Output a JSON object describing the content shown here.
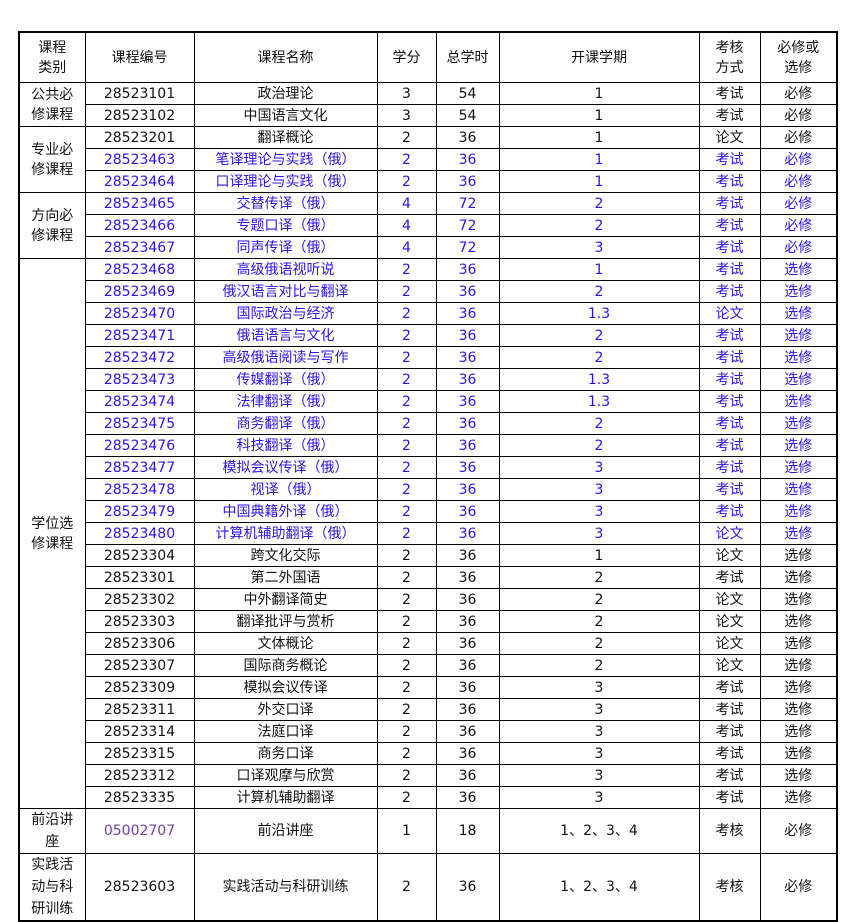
{
  "headers": [
    "课程\n类别",
    "课程编号",
    "课程名称",
    "学分",
    "总学时",
    "开课学期",
    "考核\n方式",
    "必修或\n选修"
  ],
  "colors": {
    "highlight": "#2a14ee",
    "code_purple": "#6b3fa0",
    "text": "#111111"
  },
  "groups": [
    {
      "category": "公共必修课程",
      "rows": [
        {
          "code": "28523101",
          "name": "政治理论",
          "credit": "3",
          "hours": "54",
          "term": "1",
          "exam": "考试",
          "type": "必修",
          "highlight": false
        },
        {
          "code": "28523102",
          "name": "中国语言文化",
          "credit": "3",
          "hours": "54",
          "term": "1",
          "exam": "考试",
          "type": "必修",
          "highlight": false
        }
      ]
    },
    {
      "category": "专业必修课程",
      "rows": [
        {
          "code": "28523201",
          "name": "翻译概论",
          "credit": "2",
          "hours": "36",
          "term": "1",
          "exam": "论文",
          "type": "必修",
          "highlight": false
        },
        {
          "code": "28523463",
          "name": "笔译理论与实践（俄）",
          "credit": "2",
          "hours": "36",
          "term": "1",
          "exam": "考试",
          "type": "必修",
          "highlight": true
        },
        {
          "code": "28523464",
          "name": "口译理论与实践（俄）",
          "credit": "2",
          "hours": "36",
          "term": "1",
          "exam": "考试",
          "type": "必修",
          "highlight": true
        }
      ]
    },
    {
      "category": "方向必修课程",
      "rows": [
        {
          "code": "28523465",
          "name": "交替传译（俄）",
          "credit": "4",
          "hours": "72",
          "term": "2",
          "exam": "考试",
          "type": "必修",
          "highlight": true
        },
        {
          "code": "28523466",
          "name": "专题口译（俄）",
          "credit": "4",
          "hours": "72",
          "term": "2",
          "exam": "考试",
          "type": "必修",
          "highlight": true
        },
        {
          "code": "28523467",
          "name": "同声传译（俄）",
          "credit": "4",
          "hours": "72",
          "term": "3",
          "exam": "考试",
          "type": "必修",
          "highlight": true
        }
      ]
    },
    {
      "category": "学位选修课程",
      "rows": [
        {
          "code": "28523468",
          "name": "高级俄语视听说",
          "credit": "2",
          "hours": "36",
          "term": "1",
          "exam": "考试",
          "type": "选修",
          "highlight": true
        },
        {
          "code": "28523469",
          "name": "俄汉语言对比与翻译",
          "credit": "2",
          "hours": "36",
          "term": "2",
          "exam": "考试",
          "type": "选修",
          "highlight": true
        },
        {
          "code": "28523470",
          "name": "国际政治与经济",
          "credit": "2",
          "hours": "36",
          "term": "1.3",
          "exam": "论文",
          "type": "选修",
          "highlight": true
        },
        {
          "code": "28523471",
          "name": "俄语语言与文化",
          "credit": "2",
          "hours": "36",
          "term": "2",
          "exam": "考试",
          "type": "选修",
          "highlight": true
        },
        {
          "code": "28523472",
          "name": "高级俄语阅读与写作",
          "credit": "2",
          "hours": "36",
          "term": "2",
          "exam": "考试",
          "type": "选修",
          "highlight": true
        },
        {
          "code": "28523473",
          "name": "传媒翻译（俄）",
          "credit": "2",
          "hours": "36",
          "term": "1.3",
          "exam": "考试",
          "type": "选修",
          "highlight": true
        },
        {
          "code": "28523474",
          "name": "法律翻译（俄）",
          "credit": "2",
          "hours": "36",
          "term": "1.3",
          "exam": "考试",
          "type": "选修",
          "highlight": true
        },
        {
          "code": "28523475",
          "name": "商务翻译（俄）",
          "credit": "2",
          "hours": "36",
          "term": "2",
          "exam": "考试",
          "type": "选修",
          "highlight": true
        },
        {
          "code": "28523476",
          "name": "科技翻译（俄）",
          "credit": "2",
          "hours": "36",
          "term": "2",
          "exam": "考试",
          "type": "选修",
          "highlight": true
        },
        {
          "code": "28523477",
          "name": "模拟会议传译（俄）",
          "credit": "2",
          "hours": "36",
          "term": "3",
          "exam": "考试",
          "type": "选修",
          "highlight": true
        },
        {
          "code": "28523478",
          "name": "视译（俄）",
          "credit": "2",
          "hours": "36",
          "term": "3",
          "exam": "考试",
          "type": "选修",
          "highlight": true
        },
        {
          "code": "28523479",
          "name": "中国典籍外译（俄）",
          "credit": "2",
          "hours": "36",
          "term": "3",
          "exam": "考试",
          "type": "选修",
          "highlight": true
        },
        {
          "code": "28523480",
          "name": "计算机辅助翻译（俄）",
          "credit": "2",
          "hours": "36",
          "term": "3",
          "exam": "论文",
          "type": "选修",
          "highlight": true
        },
        {
          "code": "28523304",
          "name": "跨文化交际",
          "credit": "2",
          "hours": "36",
          "term": "1",
          "exam": "论文",
          "type": "选修",
          "highlight": false
        },
        {
          "code": "28523301",
          "name": "第二外国语",
          "credit": "2",
          "hours": "36",
          "term": "2",
          "exam": "考试",
          "type": "选修",
          "highlight": false
        },
        {
          "code": "28523302",
          "name": "中外翻译简史",
          "credit": "2",
          "hours": "36",
          "term": "2",
          "exam": "论文",
          "type": "选修",
          "highlight": false
        },
        {
          "code": "28523303",
          "name": "翻译批评与赏析",
          "credit": "2",
          "hours": "36",
          "term": "2",
          "exam": "论文",
          "type": "选修",
          "highlight": false
        },
        {
          "code": "28523306",
          "name": "文体概论",
          "credit": "2",
          "hours": "36",
          "term": "2",
          "exam": "论文",
          "type": "选修",
          "highlight": false
        },
        {
          "code": "28523307",
          "name": "国际商务概论",
          "credit": "2",
          "hours": "36",
          "term": "2",
          "exam": "论文",
          "type": "选修",
          "highlight": false
        },
        {
          "code": "28523309",
          "name": "模拟会议传译",
          "credit": "2",
          "hours": "36",
          "term": "3",
          "exam": "考试",
          "type": "选修",
          "highlight": false
        },
        {
          "code": "28523311",
          "name": "外交口译",
          "credit": "2",
          "hours": "36",
          "term": "3",
          "exam": "考试",
          "type": "选修",
          "highlight": false
        },
        {
          "code": "28523314",
          "name": "法庭口译",
          "credit": "2",
          "hours": "36",
          "term": "3",
          "exam": "考试",
          "type": "选修",
          "highlight": false
        },
        {
          "code": "28523315",
          "name": "商务口译",
          "credit": "2",
          "hours": "36",
          "term": "3",
          "exam": "考试",
          "type": "选修",
          "highlight": false
        },
        {
          "code": "28523312",
          "name": "口译观摩与欣赏",
          "credit": "2",
          "hours": "36",
          "term": "3",
          "exam": "考试",
          "type": "选修",
          "highlight": false
        },
        {
          "code": "28523335",
          "name": "计算机辅助翻译",
          "credit": "2",
          "hours": "36",
          "term": "3",
          "exam": "考试",
          "type": "选修",
          "highlight": false
        }
      ]
    },
    {
      "category": "前沿讲座",
      "tall": 43,
      "rows": [
        {
          "code": "05002707",
          "name": "前沿讲座",
          "credit": "1",
          "hours": "18",
          "term": "1、2、3、4",
          "exam": "考核",
          "type": "必修",
          "highlight": false,
          "code_purple": true
        }
      ]
    },
    {
      "category": "实践活动与科研训练",
      "tall": 61,
      "rows": [
        {
          "code": "28523603",
          "name": "实践活动与科研训练",
          "credit": "2",
          "hours": "36",
          "term": "1、2、3、4",
          "exam": "考核",
          "type": "必修",
          "highlight": false
        }
      ]
    }
  ]
}
